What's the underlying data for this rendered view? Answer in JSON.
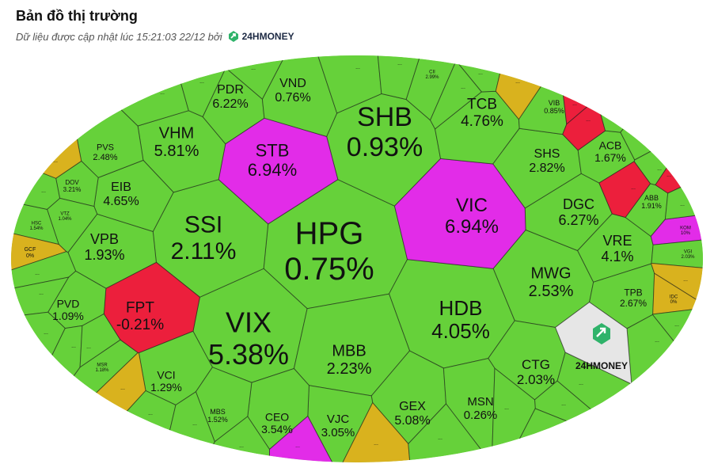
{
  "header": {
    "title": "Bản đồ thị trường",
    "subtitle": "Dữ liệu được cập nhật lúc 15:21:03 22/12 bởi",
    "brand": "24HMONEY"
  },
  "colors": {
    "up": "#66d13a",
    "down": "#ec1f3c",
    "ceiling": "#e22ce8",
    "reference": "#d9b21e",
    "watermark": "#e6e6e6",
    "border": "#ffffff"
  },
  "tiles": [
    {
      "symbol": "HPG",
      "change": "0.75%",
      "status": "up"
    },
    {
      "symbol": "SHB",
      "change": "0.93%",
      "status": "up"
    },
    {
      "symbol": "VIX",
      "change": "5.38%",
      "status": "up"
    },
    {
      "symbol": "HDB",
      "change": "4.05%",
      "status": "up"
    },
    {
      "symbol": "SSI",
      "change": "2.11%",
      "status": "up"
    },
    {
      "symbol": "VIC",
      "change": "6.94%",
      "status": "ceiling"
    },
    {
      "symbol": "STB",
      "change": "6.94%",
      "status": "ceiling"
    },
    {
      "symbol": "FPT",
      "change": "-0.21%",
      "status": "down"
    },
    {
      "symbol": "MBB",
      "change": "2.23%",
      "status": "up"
    },
    {
      "symbol": "MWG",
      "change": "2.53%",
      "status": "up"
    },
    {
      "symbol": "VHM",
      "change": "5.81%",
      "status": "up"
    },
    {
      "symbol": "VPB",
      "change": "1.93%",
      "status": "up"
    },
    {
      "symbol": "TCB",
      "change": "4.76%",
      "status": "up"
    },
    {
      "symbol": "PDR",
      "change": "6.22%",
      "status": "up"
    },
    {
      "symbol": "VND",
      "change": "0.76%",
      "status": "up"
    },
    {
      "symbol": "DGC",
      "change": "6.27%",
      "status": "up"
    },
    {
      "symbol": "EIB",
      "change": "4.65%",
      "status": "up"
    },
    {
      "symbol": "SHS",
      "change": "2.82%",
      "status": "up"
    },
    {
      "symbol": "VRE",
      "change": "4.1%",
      "status": "up"
    },
    {
      "symbol": "CTG",
      "change": "2.03%",
      "status": "up"
    },
    {
      "symbol": "GEX",
      "change": "5.08%",
      "status": "up"
    },
    {
      "symbol": "VJC",
      "change": "3.05%",
      "status": "up"
    },
    {
      "symbol": "CEO",
      "change": "3.54%",
      "status": "up"
    },
    {
      "symbol": "MSN",
      "change": "0.26%",
      "status": "up"
    },
    {
      "symbol": "VCI",
      "change": "1.29%",
      "status": "up"
    },
    {
      "symbol": "PVD",
      "change": "1.09%",
      "status": "up"
    },
    {
      "symbol": "ACB",
      "change": "1.67%",
      "status": "up"
    },
    {
      "symbol": "PVS",
      "change": "2.48%",
      "status": "up"
    },
    {
      "symbol": "TPB",
      "change": "2.67%",
      "status": "up"
    },
    {
      "symbol": "MBS",
      "change": "1.52%",
      "status": "up"
    },
    {
      "symbol": "ABB",
      "change": "1.91%",
      "status": "up"
    },
    {
      "symbol": "VIB",
      "change": "0.85%",
      "status": "up"
    },
    {
      "symbol": "DOV",
      "change": "3.21%",
      "status": "up"
    },
    {
      "symbol": "CII",
      "change": "2.99%",
      "status": "up"
    },
    {
      "symbol": "MSR",
      "change": "1.18%",
      "status": "up"
    },
    {
      "symbol": "VTZ",
      "change": "1.04%",
      "status": "up"
    },
    {
      "symbol": "HSC",
      "change": "1.54%",
      "status": "up"
    },
    {
      "symbol": "GCF",
      "change": "0%",
      "status": "reference"
    },
    {
      "symbol": "IDC",
      "change": "0%",
      "status": "reference"
    },
    {
      "symbol": "KOM",
      "change": "10%",
      "status": "ceiling"
    },
    {
      "symbol": "VGI",
      "change": "2.03%",
      "status": "up"
    }
  ],
  "more_label": "...",
  "watermark_brand": "24HMONEY"
}
